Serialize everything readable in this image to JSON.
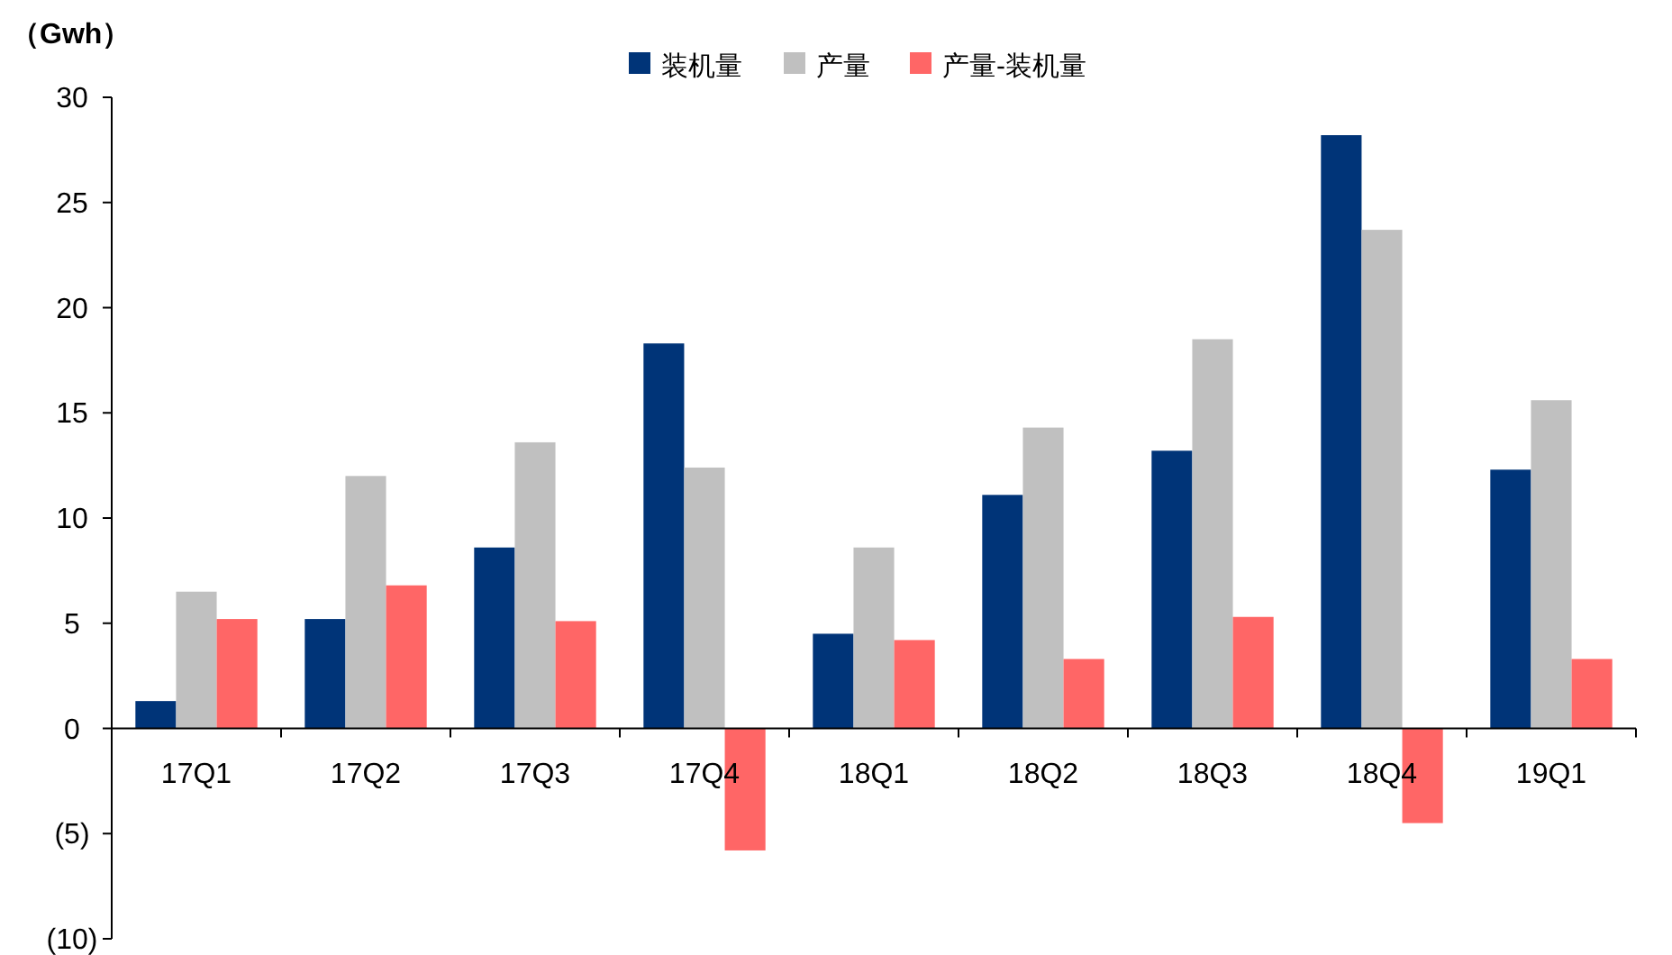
{
  "chart_data": {
    "type": "bar",
    "ylabel": "（Gwh）",
    "categories": [
      "17Q1",
      "17Q2",
      "17Q3",
      "17Q4",
      "18Q1",
      "18Q2",
      "18Q3",
      "18Q4",
      "19Q1"
    ],
    "series": [
      {
        "name": "装机量",
        "color": "#003478",
        "values": [
          1.3,
          5.2,
          8.6,
          18.3,
          4.5,
          11.1,
          13.2,
          28.2,
          12.3
        ]
      },
      {
        "name": "产量",
        "color": "#c0c0c0",
        "values": [
          6.5,
          12.0,
          13.6,
          12.4,
          8.6,
          14.3,
          18.5,
          23.7,
          15.6
        ]
      },
      {
        "name": "产量-装机量",
        "color": "#ff6666",
        "values": [
          5.2,
          6.8,
          5.1,
          -5.8,
          4.2,
          3.3,
          5.3,
          -4.5,
          3.3
        ]
      }
    ],
    "ylim": [
      -10,
      30
    ],
    "yticks": [
      {
        "value": -10,
        "label": "(10)"
      },
      {
        "value": -5,
        "label": "(5)"
      },
      0,
      5,
      10,
      15,
      20,
      25,
      30
    ],
    "legend": "top",
    "grid": false
  }
}
